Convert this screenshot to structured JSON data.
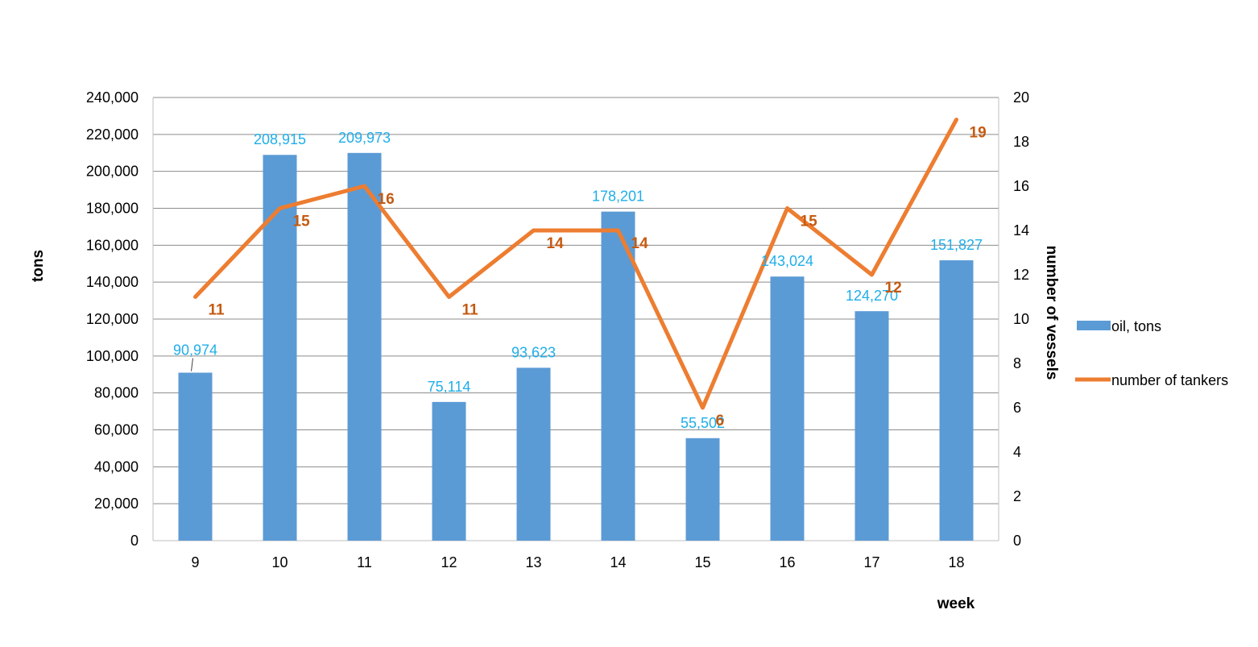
{
  "chart_data": {
    "type": "bar",
    "title": "",
    "xlabel": "week",
    "ylabel": "tons",
    "y2label": "number of vessels",
    "categories": [
      "9",
      "10",
      "11",
      "12",
      "13",
      "14",
      "15",
      "16",
      "17",
      "18"
    ],
    "ylim": [
      0,
      240000
    ],
    "yticks": [
      0,
      20000,
      40000,
      60000,
      80000,
      100000,
      120000,
      140000,
      160000,
      180000,
      200000,
      220000,
      240000
    ],
    "y2lim": [
      0,
      20
    ],
    "y2ticks": [
      0,
      2,
      4,
      6,
      8,
      10,
      12,
      14,
      16,
      18,
      20
    ],
    "grid": true,
    "legend_position": "right",
    "series": [
      {
        "name": "oil, tons",
        "type": "bar",
        "axis": "left",
        "color": "#5b9bd5",
        "label_color": "#1faee9",
        "values": [
          90974,
          208915,
          209973,
          75114,
          93623,
          178201,
          55502,
          143024,
          124270,
          151827
        ],
        "value_labels": [
          "90,974",
          "208,915",
          "209,973",
          "75,114",
          "93,623",
          "178,201",
          "55,502",
          "143,024",
          "124,270",
          "151,827"
        ]
      },
      {
        "name": "number of tankers",
        "type": "line",
        "axis": "right",
        "color": "#ed7d31",
        "label_color": "#c55a11",
        "values": [
          11,
          15,
          16,
          11,
          14,
          14,
          6,
          15,
          12,
          19
        ],
        "value_labels": [
          "11",
          "15",
          "16",
          "11",
          "14",
          "14",
          "6",
          "15",
          "12",
          "19"
        ]
      }
    ],
    "ytick_labels": [
      "0",
      "20,000",
      "40,000",
      "60,000",
      "80,000",
      "100,000",
      "120,000",
      "140,000",
      "160,000",
      "180,000",
      "200,000",
      "220,000",
      "240,000"
    ],
    "y2tick_labels": [
      "0",
      "2",
      "4",
      "6",
      "8",
      "10",
      "12",
      "14",
      "16",
      "18",
      "20"
    ]
  }
}
